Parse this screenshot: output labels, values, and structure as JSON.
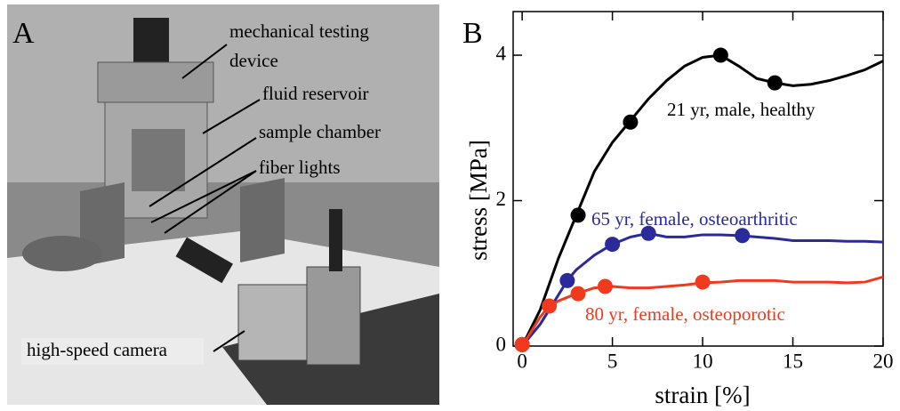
{
  "panel_a": {
    "label": "A",
    "annotations": [
      {
        "lines": [
          "mechanical testing",
          "device"
        ]
      },
      {
        "lines": [
          "fluid reservoir"
        ]
      },
      {
        "lines": [
          "sample chamber"
        ]
      },
      {
        "lines": [
          "fiber lights"
        ]
      },
      {
        "lines": [
          "high-speed camera"
        ]
      }
    ]
  },
  "chart_data": {
    "type": "line",
    "panel_label": "B",
    "x_label": "strain [%]",
    "y_label": "stress [MPa]",
    "xlim": [
      -0.5,
      20
    ],
    "ylim": [
      0,
      4.6
    ],
    "xticks": [
      0,
      5,
      10,
      15,
      20
    ],
    "yticks": [
      0,
      2,
      4
    ],
    "series": [
      {
        "name": "21 yr, male, healthy",
        "color": "#000000",
        "x": [
          0,
          1,
          2,
          3,
          4,
          5,
          6,
          7,
          8,
          9,
          10,
          11,
          12,
          13,
          14,
          15,
          16,
          17,
          18,
          19,
          20
        ],
        "values": [
          0,
          0.5,
          1.2,
          1.8,
          2.4,
          2.8,
          3.1,
          3.4,
          3.65,
          3.85,
          3.97,
          4.0,
          3.85,
          3.68,
          3.62,
          3.58,
          3.6,
          3.65,
          3.72,
          3.8,
          3.92
        ],
        "marker_x": [
          0,
          3.1,
          6,
          11,
          14
        ],
        "marker_values": [
          0.02,
          1.8,
          3.08,
          4.0,
          3.62
        ]
      },
      {
        "name": "65 yr, female, osteoarthritic",
        "color": "#2a2a9a",
        "x": [
          0,
          1,
          2,
          2.5,
          3,
          4,
          5,
          6,
          7,
          8,
          9,
          10,
          11,
          12,
          13,
          14,
          15,
          16,
          17,
          18,
          19,
          20
        ],
        "values": [
          0,
          0.3,
          0.7,
          0.9,
          1.05,
          1.25,
          1.4,
          1.5,
          1.55,
          1.5,
          1.5,
          1.53,
          1.53,
          1.52,
          1.5,
          1.48,
          1.45,
          1.45,
          1.45,
          1.44,
          1.44,
          1.43
        ],
        "marker_x": [
          2.5,
          5,
          7,
          12.2
        ],
        "marker_values": [
          0.9,
          1.4,
          1.55,
          1.52
        ]
      },
      {
        "name": "80 yr, female, osteoporotic",
        "color": "#f03a1e",
        "x": [
          0,
          1,
          1.5,
          2,
          3,
          4,
          5,
          6,
          7,
          8,
          9,
          10,
          11,
          12,
          13,
          14,
          15,
          16,
          17,
          18,
          19,
          20
        ],
        "values": [
          0,
          0.4,
          0.55,
          0.62,
          0.72,
          0.8,
          0.82,
          0.8,
          0.8,
          0.82,
          0.84,
          0.87,
          0.88,
          0.9,
          0.9,
          0.9,
          0.88,
          0.88,
          0.88,
          0.87,
          0.88,
          0.95
        ],
        "marker_x": [
          0,
          1.5,
          3.1,
          4.6,
          10
        ],
        "marker_values": [
          0.02,
          0.55,
          0.72,
          0.82,
          0.88
        ]
      }
    ]
  }
}
